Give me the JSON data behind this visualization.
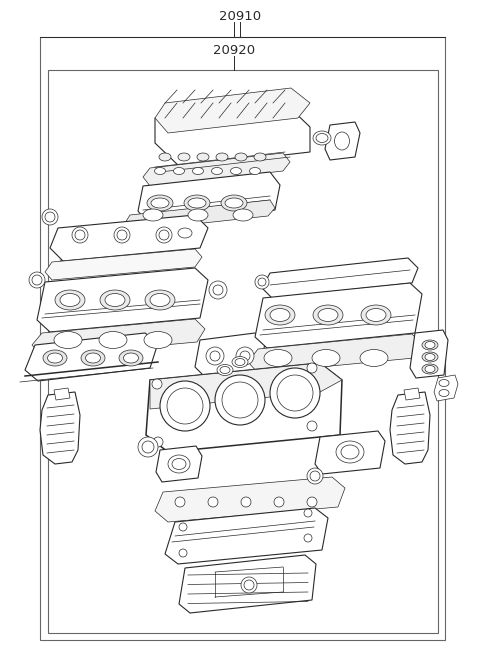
{
  "title_label1": "20910",
  "title_label2": "20920",
  "background_color": "#ffffff",
  "line_color": "#2a2a2a",
  "border_color": "#555555",
  "fig_width": 4.8,
  "fig_height": 6.55,
  "dpi": 100,
  "font_size": 9.5,
  "lw_thin": 0.5,
  "lw_med": 0.8,
  "lw_thick": 1.1
}
